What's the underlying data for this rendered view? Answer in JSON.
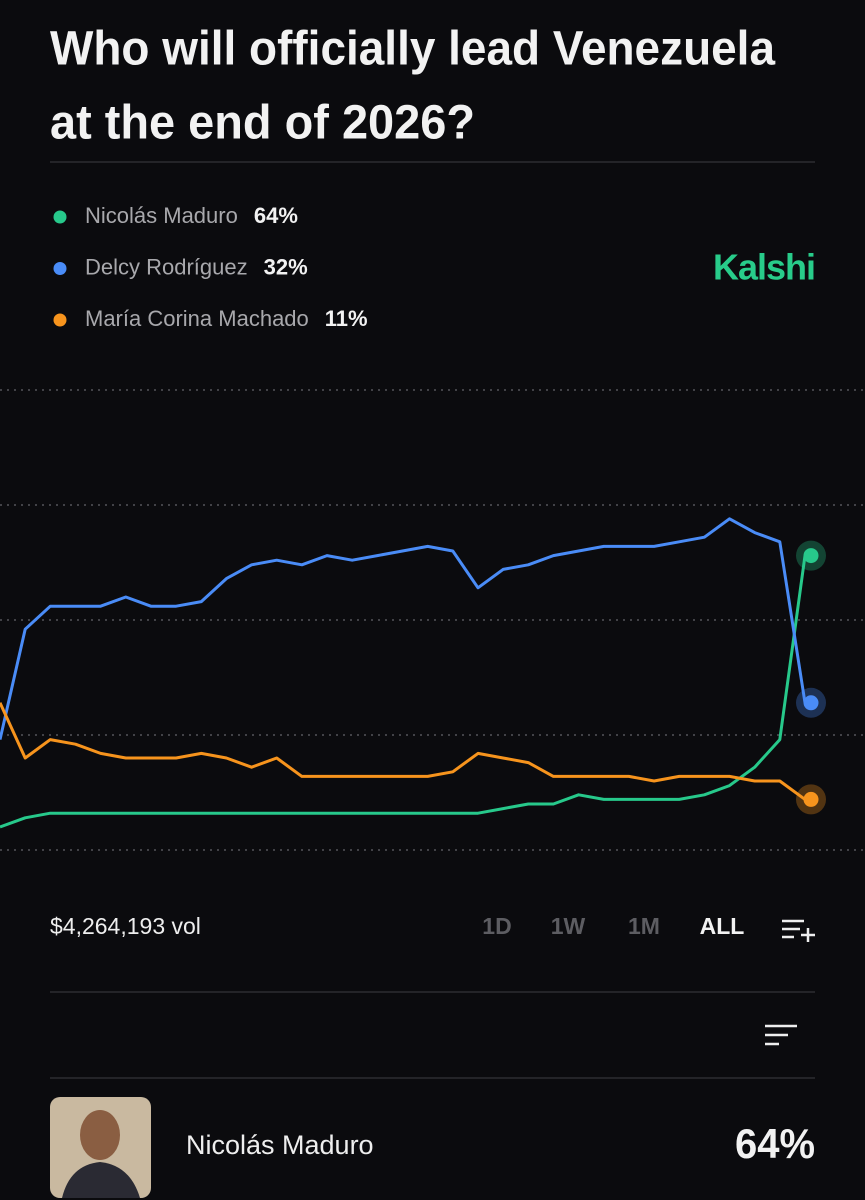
{
  "header": {
    "title_lines": [
      "Who will officially lead Venezuela",
      "at the end of 2026?"
    ],
    "brand": "Kalshi"
  },
  "chart_data": {
    "type": "line",
    "ylim": [
      0,
      100
    ],
    "yticks": [
      0,
      25,
      50,
      75,
      100
    ],
    "grid": true,
    "series": [
      {
        "name": "Nicolás Maduro",
        "current": "64%",
        "color": "#27c98b",
        "values": [
          5,
          7,
          8,
          8,
          8,
          8,
          8,
          8,
          8,
          8,
          8,
          8,
          8,
          8,
          8,
          8,
          8,
          8,
          8,
          8,
          9,
          10,
          10,
          12,
          11,
          11,
          11,
          11,
          12,
          14,
          18,
          24,
          64
        ]
      },
      {
        "name": "Delcy Rodríguez",
        "current": "32%",
        "color": "#4a8cf7",
        "values": [
          24,
          48,
          53,
          53,
          53,
          55,
          53,
          53,
          54,
          59,
          62,
          63,
          62,
          64,
          63,
          64,
          65,
          66,
          65,
          57,
          61,
          62,
          64,
          65,
          66,
          66,
          66,
          67,
          68,
          72,
          69,
          67,
          32
        ]
      },
      {
        "name": "María Corina Machado",
        "current": "11%",
        "color": "#f7941d",
        "values": [
          32,
          20,
          24,
          23,
          21,
          20,
          20,
          20,
          21,
          20,
          18,
          20,
          16,
          16,
          16,
          16,
          16,
          16,
          17,
          21,
          20,
          19,
          16,
          16,
          16,
          16,
          15,
          16,
          16,
          16,
          15,
          15,
          11
        ]
      }
    ]
  },
  "footer": {
    "volume": "$4,264,193 vol",
    "ranges": [
      "1D",
      "1W",
      "1M",
      "ALL"
    ]
  },
  "outcomes": [
    {
      "name": "Nicolás Maduro",
      "chance": "64%"
    }
  ]
}
